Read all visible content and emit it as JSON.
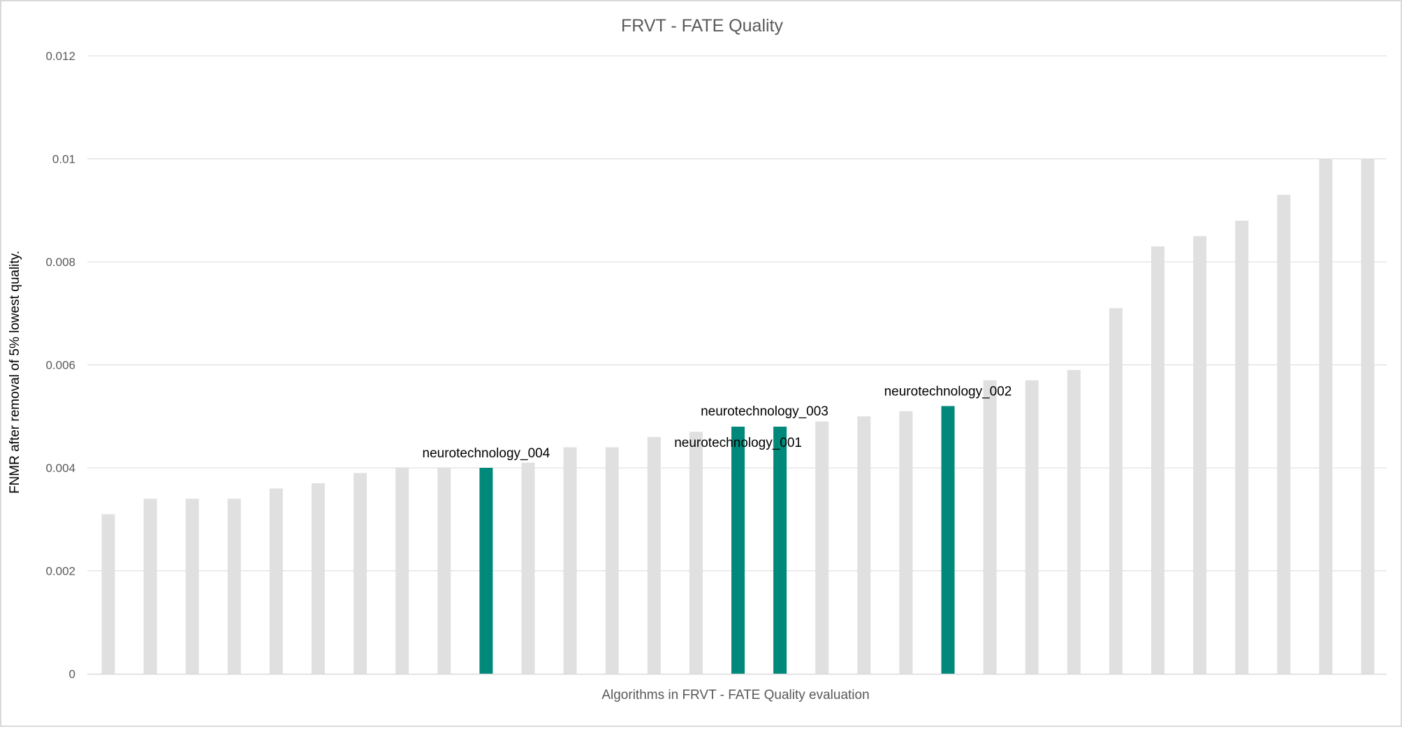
{
  "chart_data": {
    "type": "bar",
    "title": "FRVT - FATE Quality",
    "xlabel": "Algorithms in FRVT - FATE Quality evaluation",
    "ylabel": "FNMR after removal of 5% lowest quality.",
    "ylim": [
      0,
      0.012
    ],
    "yticks": [
      0,
      0.002,
      0.004,
      0.006,
      0.008,
      0.01,
      0.012
    ],
    "ytick_labels": [
      "0",
      "0.002",
      "0.004",
      "0.006",
      "0.008",
      "0.01",
      "0.012"
    ],
    "grid": true,
    "legend": "none",
    "colors": {
      "default_bar": "#e0e0e0",
      "highlight_bar": "#00897a",
      "grid": "#d9d9d9",
      "text": "#595959",
      "label_text": "#000000"
    },
    "values": [
      0.0031,
      0.0034,
      0.0034,
      0.0034,
      0.0036,
      0.0037,
      0.0039,
      0.004,
      0.004,
      0.004,
      0.0041,
      0.0044,
      0.0044,
      0.0046,
      0.0047,
      0.0048,
      0.0048,
      0.0049,
      0.005,
      0.0051,
      0.0052,
      0.0057,
      0.0057,
      0.0059,
      0.0071,
      0.0083,
      0.0085,
      0.0088,
      0.0093,
      0.01,
      0.01
    ],
    "highlighted": [
      {
        "index": 9,
        "label": "neurotechnology_004"
      },
      {
        "index": 15,
        "label": "neurotechnology_003"
      },
      {
        "index": 16,
        "label": "neurotechnology_001"
      },
      {
        "index": 20,
        "label": "neurotechnology_002"
      }
    ]
  }
}
